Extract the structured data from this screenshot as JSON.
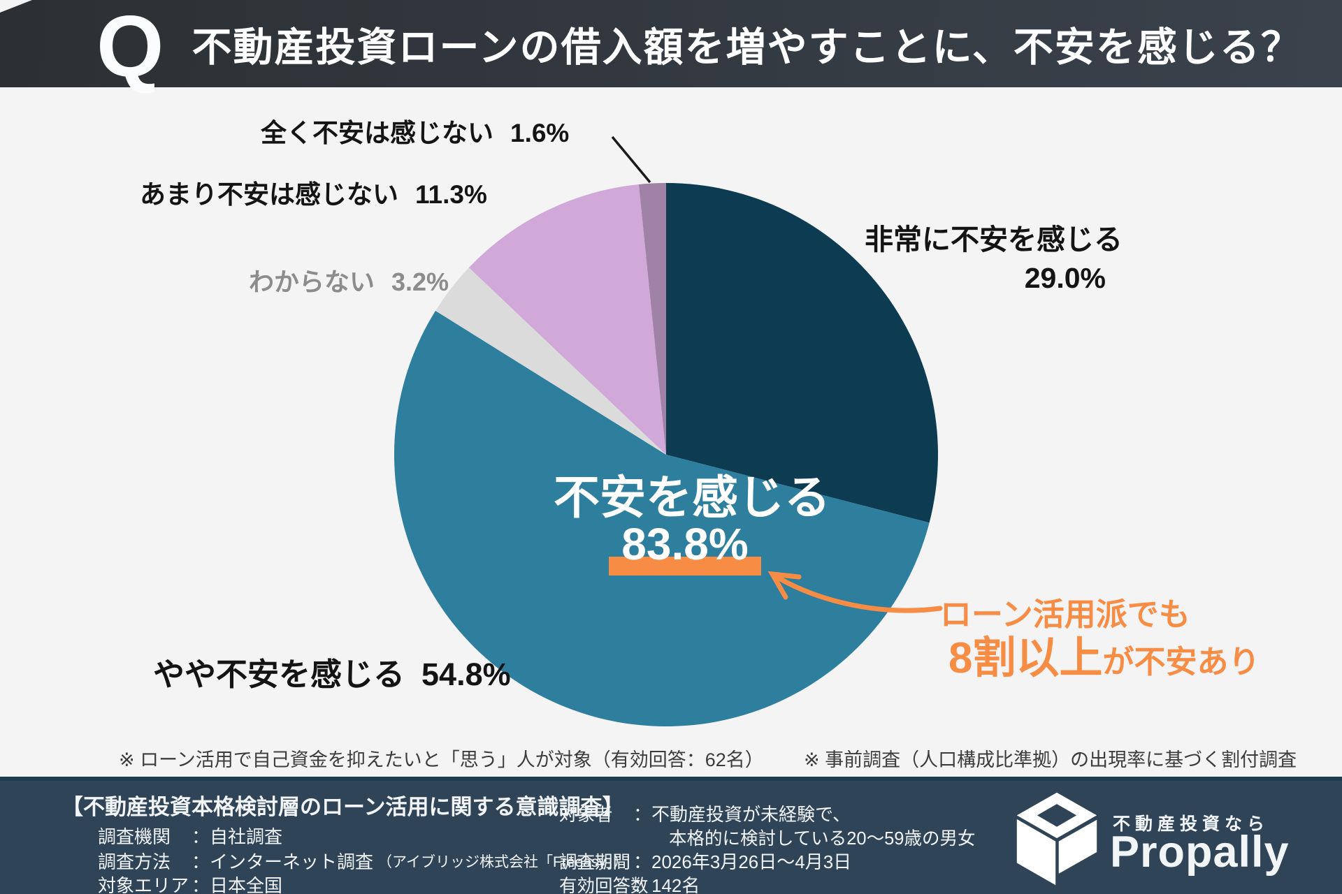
{
  "header": {
    "q_mark": "Q",
    "title": "不動産投資ローンの借入額を増やすことに、不安を感じる？"
  },
  "chart_data": {
    "type": "pie",
    "title": "不動産投資ローンの借入額を増やすことに、不安を感じる？",
    "start_angle_deg": 0,
    "direction": "clockwise",
    "legend_position": "around",
    "slices": [
      {
        "label": "非常に不安を感じる",
        "value": 29.0,
        "pct_label": "29.0%",
        "color": "#0C3B52"
      },
      {
        "label": "やや不安を感じる",
        "value": 54.8,
        "pct_label": "54.8%",
        "color": "#2E7E9D"
      },
      {
        "label": "わからない",
        "value": 3.2,
        "pct_label": "3.2%",
        "color": "#DBDBDB"
      },
      {
        "label": "あまり不安は感じない",
        "value": 11.3,
        "pct_label": "11.3%",
        "color": "#D0A9D8"
      },
      {
        "label": "全く不安は感じない",
        "value": 1.6,
        "pct_label": "1.6%",
        "color": "#9F82A6"
      }
    ],
    "center_callout": {
      "label": "不安を感じる",
      "value": "83.8%"
    },
    "annotation": {
      "line1": "ローン活用派でも",
      "emphasis": "8割以上",
      "suffix": "が不安あり"
    }
  },
  "footnotes": {
    "note1": "※ ローン活用で自己資金を抑えたいと「思う」人が対象（有効回答：62名）",
    "note2": "※ 事前調査（人口構成比準拠）の出現率に基づく割付調査"
  },
  "footer": {
    "survey_title": "【不動産投資本格検討層のローン活用に関する意識調査】",
    "label_sep": "：",
    "left_rows": [
      {
        "label": "調査機関",
        "value": "自社調査"
      },
      {
        "label": "調査方法",
        "value": "インターネット調査",
        "value_small": "（アイブリッジ株式会社「Freeasy」）"
      },
      {
        "label": "対象エリア",
        "value": "日本全国"
      }
    ],
    "mid_rows": [
      {
        "label": "対象者",
        "value": "不動産投資が未経験で、",
        "value_line2": "本格的に検討している20〜59歳の男女"
      },
      {
        "label": "調査期間",
        "value": "2026年3月26日〜4月3日"
      },
      {
        "label": "有効回答数",
        "value": "142名"
      }
    ],
    "brand": {
      "tagline": "不動産投資なら",
      "name": "Propally",
      "icon": "isometric-box-logo"
    }
  },
  "colors": {
    "background": "#F4F4F5",
    "header_bg": "#32363B",
    "footer_bg": "#2F4457",
    "accent_orange": "#F78C45",
    "navy": "#0C3B52",
    "teal": "#2E7E9D",
    "gray": "#DBDBDB",
    "lavender": "#D0A9D8",
    "mauve": "#9F82A6"
  }
}
